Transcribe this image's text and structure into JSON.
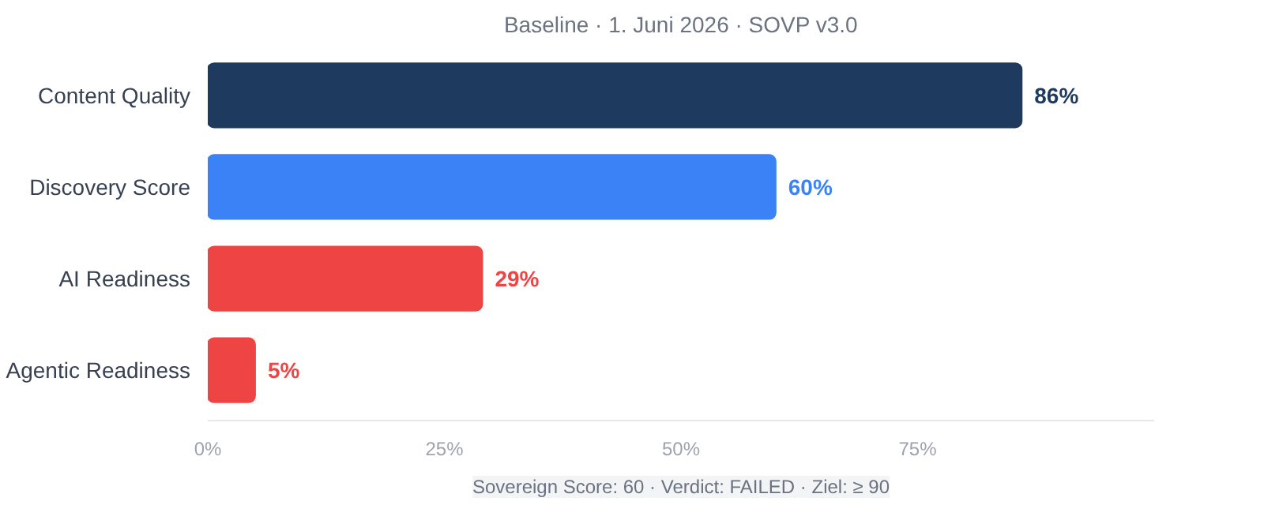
{
  "chart_data": {
    "type": "bar",
    "orientation": "horizontal",
    "title": "Baseline · 1. Juni 2026 · SOVP v3.0",
    "categories": [
      "Content Quality",
      "Discovery Score",
      "AI Readiness",
      "Agentic Readiness"
    ],
    "values": [
      86,
      60,
      29,
      5
    ],
    "colors": [
      "#1e3a5f",
      "#3b82f6",
      "#ef4444",
      "#ef4444"
    ],
    "value_labels": [
      "86%",
      "60%",
      "29%",
      "5%"
    ],
    "xlim": [
      0,
      100
    ],
    "xticks": [
      {
        "value": 0,
        "label": "0%"
      },
      {
        "value": 25,
        "label": "25%"
      },
      {
        "value": 50,
        "label": "50%"
      },
      {
        "value": 75,
        "label": "75%"
      }
    ],
    "grid": false,
    "annotations": [
      "Sovereign Score: 60 · Verdict: FAILED · Ziel: ≥ 90"
    ]
  }
}
